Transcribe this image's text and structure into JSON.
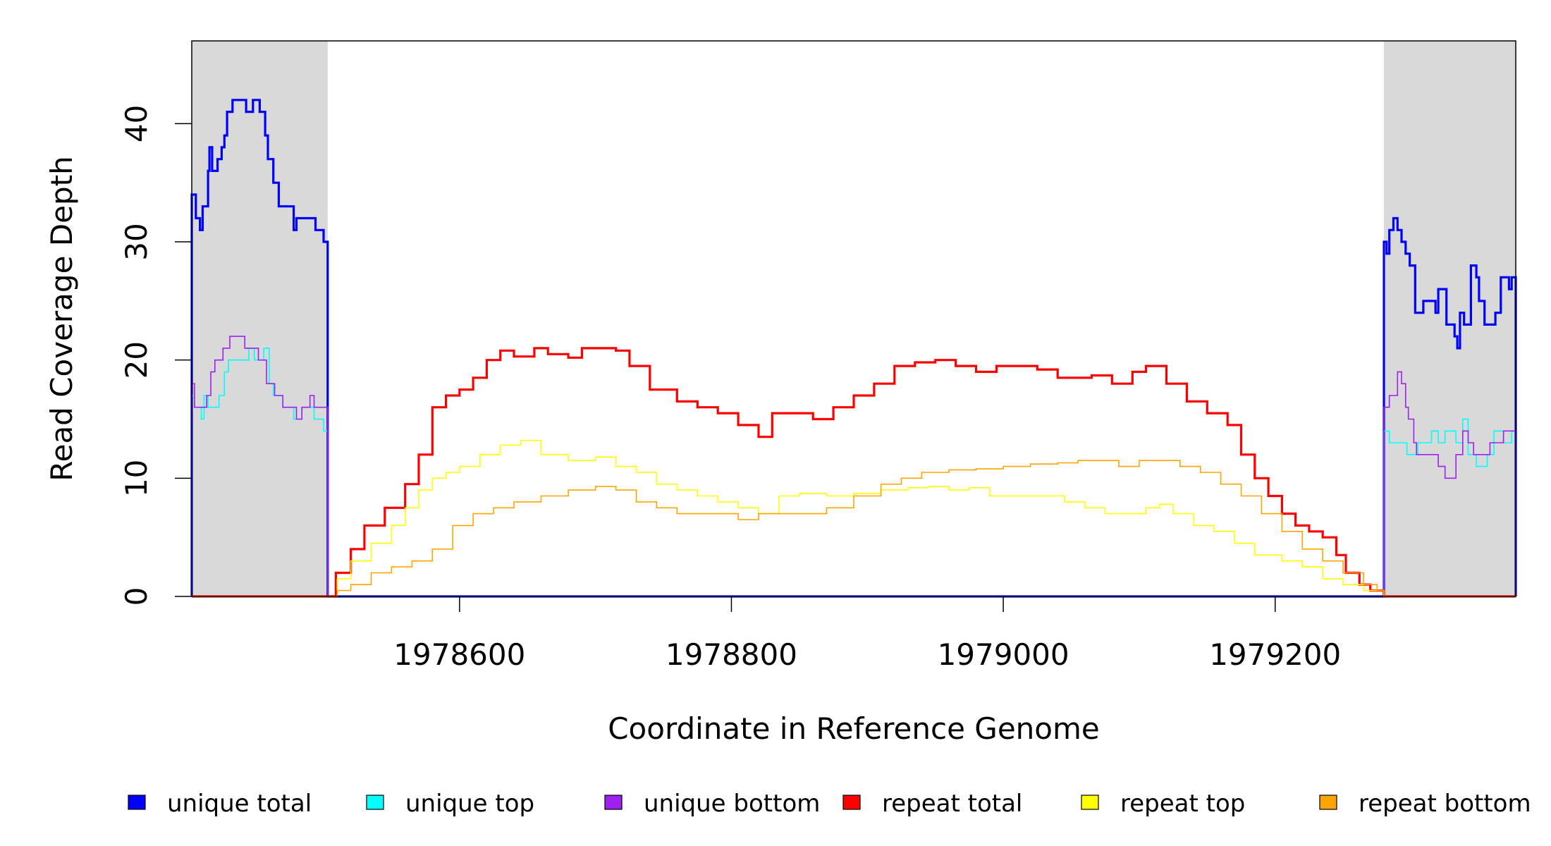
{
  "chart_data": {
    "type": "line",
    "step": true,
    "xlabel": "Coordinate in Reference Genome",
    "ylabel": "Read Coverage Depth",
    "xlim": [
      1978403,
      1979377
    ],
    "ylim": [
      0,
      47
    ],
    "x_ticks": [
      1978600,
      1978800,
      1979000,
      1979200
    ],
    "y_ticks": [
      0,
      10,
      20,
      30,
      40
    ],
    "shaded_regions": [
      [
        1978403,
        1978503
      ],
      [
        1979280,
        1979377
      ]
    ],
    "shade_color": "#d9d9d9",
    "legend_position": "bottom",
    "series": [
      {
        "name": "unique total",
        "color": "#0000ff",
        "width": 3.2,
        "points": [
          [
            1978403,
            34
          ],
          [
            1978406,
            32
          ],
          [
            1978409,
            31
          ],
          [
            1978411,
            33
          ],
          [
            1978415,
            36
          ],
          [
            1978416,
            38
          ],
          [
            1978418,
            36
          ],
          [
            1978422,
            37
          ],
          [
            1978425,
            38
          ],
          [
            1978427,
            39
          ],
          [
            1978429,
            41
          ],
          [
            1978433,
            42
          ],
          [
            1978443,
            41
          ],
          [
            1978448,
            42
          ],
          [
            1978453,
            41
          ],
          [
            1978457,
            39
          ],
          [
            1978459,
            37
          ],
          [
            1978463,
            35
          ],
          [
            1978467,
            33
          ],
          [
            1978478,
            31
          ],
          [
            1978480,
            32
          ],
          [
            1978494,
            31
          ],
          [
            1978500,
            30
          ],
          [
            1978503,
            0
          ],
          [
            1979280,
            30
          ],
          [
            1979282,
            29
          ],
          [
            1979284,
            31
          ],
          [
            1979287,
            32
          ],
          [
            1979290,
            31
          ],
          [
            1979293,
            30
          ],
          [
            1979296,
            29
          ],
          [
            1979299,
            28
          ],
          [
            1979303,
            24
          ],
          [
            1979309,
            25
          ],
          [
            1979318,
            24
          ],
          [
            1979320,
            26
          ],
          [
            1979326,
            23
          ],
          [
            1979332,
            22
          ],
          [
            1979334,
            21
          ],
          [
            1979336,
            24
          ],
          [
            1979339,
            23
          ],
          [
            1979344,
            28
          ],
          [
            1979348,
            27
          ],
          [
            1979350,
            25
          ],
          [
            1979354,
            23
          ],
          [
            1979362,
            24
          ],
          [
            1979366,
            27
          ],
          [
            1979372,
            26
          ],
          [
            1979374,
            27
          ],
          [
            1979377,
            27
          ]
        ]
      },
      {
        "name": "unique top",
        "color": "#00ffff",
        "width": 1.6,
        "points": [
          [
            1978403,
            17
          ],
          [
            1978405,
            16
          ],
          [
            1978410,
            15
          ],
          [
            1978412,
            17
          ],
          [
            1978415,
            16
          ],
          [
            1978423,
            17
          ],
          [
            1978427,
            19
          ],
          [
            1978430,
            20
          ],
          [
            1978445,
            21
          ],
          [
            1978449,
            20
          ],
          [
            1978456,
            21
          ],
          [
            1978460,
            18
          ],
          [
            1978463,
            17
          ],
          [
            1978470,
            16
          ],
          [
            1978478,
            15
          ],
          [
            1978484,
            16
          ],
          [
            1978493,
            15
          ],
          [
            1978500,
            14
          ],
          [
            1978503,
            0
          ],
          [
            1979280,
            14
          ],
          [
            1979284,
            13
          ],
          [
            1979297,
            12
          ],
          [
            1979305,
            13
          ],
          [
            1979315,
            14
          ],
          [
            1979320,
            13
          ],
          [
            1979325,
            14
          ],
          [
            1979333,
            13
          ],
          [
            1979338,
            15
          ],
          [
            1979342,
            12
          ],
          [
            1979348,
            11
          ],
          [
            1979356,
            12
          ],
          [
            1979361,
            14
          ],
          [
            1979368,
            13
          ],
          [
            1979374,
            14
          ],
          [
            1979377,
            14
          ]
        ]
      },
      {
        "name": "unique bottom",
        "color": "#a020f0",
        "width": 1.6,
        "points": [
          [
            1978403,
            18
          ],
          [
            1978405,
            16
          ],
          [
            1978414,
            17
          ],
          [
            1978417,
            19
          ],
          [
            1978420,
            20
          ],
          [
            1978426,
            21
          ],
          [
            1978431,
            22
          ],
          [
            1978442,
            21
          ],
          [
            1978452,
            20
          ],
          [
            1978458,
            18
          ],
          [
            1978464,
            17
          ],
          [
            1978470,
            16
          ],
          [
            1978480,
            15
          ],
          [
            1978484,
            16
          ],
          [
            1978490,
            17
          ],
          [
            1978493,
            16
          ],
          [
            1978500,
            16
          ],
          [
            1978503,
            0
          ],
          [
            1979280,
            16
          ],
          [
            1979284,
            17
          ],
          [
            1979290,
            19
          ],
          [
            1979293,
            18
          ],
          [
            1979296,
            16
          ],
          [
            1979298,
            15
          ],
          [
            1979302,
            13
          ],
          [
            1979304,
            12
          ],
          [
            1979320,
            11
          ],
          [
            1979325,
            10
          ],
          [
            1979333,
            12
          ],
          [
            1979338,
            14
          ],
          [
            1979342,
            13
          ],
          [
            1979346,
            12
          ],
          [
            1979358,
            13
          ],
          [
            1979368,
            14
          ],
          [
            1979374,
            14
          ],
          [
            1979377,
            14
          ]
        ]
      },
      {
        "name": "repeat total",
        "color": "#ff0000",
        "width": 3.2,
        "points": [
          [
            1978503,
            0
          ],
          [
            1978509,
            2
          ],
          [
            1978520,
            4
          ],
          [
            1978530,
            6
          ],
          [
            1978545,
            7.5
          ],
          [
            1978560,
            9.5
          ],
          [
            1978570,
            12
          ],
          [
            1978580,
            16
          ],
          [
            1978590,
            17
          ],
          [
            1978600,
            17.5
          ],
          [
            1978610,
            18.5
          ],
          [
            1978620,
            20
          ],
          [
            1978630,
            20.8
          ],
          [
            1978640,
            20.3
          ],
          [
            1978655,
            21
          ],
          [
            1978665,
            20.5
          ],
          [
            1978680,
            20.2
          ],
          [
            1978690,
            21
          ],
          [
            1978700,
            21
          ],
          [
            1978715,
            20.8
          ],
          [
            1978725,
            19.5
          ],
          [
            1978740,
            17.5
          ],
          [
            1978760,
            16.5
          ],
          [
            1978775,
            16
          ],
          [
            1978790,
            15.5
          ],
          [
            1978805,
            14.5
          ],
          [
            1978820,
            13.5
          ],
          [
            1978830,
            15.5
          ],
          [
            1978845,
            15.5
          ],
          [
            1978860,
            15
          ],
          [
            1978875,
            16
          ],
          [
            1978890,
            17
          ],
          [
            1978905,
            18
          ],
          [
            1978920,
            19.5
          ],
          [
            1978935,
            19.8
          ],
          [
            1978950,
            20
          ],
          [
            1978965,
            19.5
          ],
          [
            1978980,
            19
          ],
          [
            1978995,
            19.5
          ],
          [
            1979010,
            19.5
          ],
          [
            1979025,
            19.2
          ],
          [
            1979040,
            18.5
          ],
          [
            1979055,
            18.5
          ],
          [
            1979065,
            18.7
          ],
          [
            1979080,
            18
          ],
          [
            1979095,
            19
          ],
          [
            1979105,
            19.5
          ],
          [
            1979120,
            18
          ],
          [
            1979135,
            16.5
          ],
          [
            1979150,
            15.5
          ],
          [
            1979165,
            14.5
          ],
          [
            1979175,
            12
          ],
          [
            1979185,
            10
          ],
          [
            1979195,
            8.5
          ],
          [
            1979205,
            7
          ],
          [
            1979215,
            6
          ],
          [
            1979225,
            5.5
          ],
          [
            1979235,
            5
          ],
          [
            1979245,
            3.5
          ],
          [
            1979252,
            2
          ],
          [
            1979262,
            1
          ],
          [
            1979270,
            0.5
          ],
          [
            1979280,
            0
          ]
        ]
      },
      {
        "name": "repeat top",
        "color": "#ffff00",
        "width": 1.6,
        "points": [
          [
            1978503,
            0
          ],
          [
            1978510,
            1.5
          ],
          [
            1978520,
            3
          ],
          [
            1978535,
            4.5
          ],
          [
            1978550,
            6
          ],
          [
            1978560,
            7.5
          ],
          [
            1978570,
            9
          ],
          [
            1978580,
            10
          ],
          [
            1978590,
            10.5
          ],
          [
            1978600,
            11
          ],
          [
            1978615,
            12
          ],
          [
            1978630,
            12.8
          ],
          [
            1978645,
            13.2
          ],
          [
            1978660,
            12
          ],
          [
            1978680,
            11.5
          ],
          [
            1978700,
            11.8
          ],
          [
            1978715,
            11
          ],
          [
            1978730,
            10.5
          ],
          [
            1978745,
            9.5
          ],
          [
            1978760,
            9
          ],
          [
            1978775,
            8.5
          ],
          [
            1978790,
            8
          ],
          [
            1978805,
            7.5
          ],
          [
            1978820,
            7
          ],
          [
            1978835,
            8.5
          ],
          [
            1978850,
            8.7
          ],
          [
            1978870,
            8.5
          ],
          [
            1978890,
            8.7
          ],
          [
            1978910,
            9
          ],
          [
            1978930,
            9.2
          ],
          [
            1978945,
            9.3
          ],
          [
            1978960,
            9
          ],
          [
            1978975,
            9.2
          ],
          [
            1978990,
            8.5
          ],
          [
            1979010,
            8.5
          ],
          [
            1979030,
            8.5
          ],
          [
            1979045,
            8
          ],
          [
            1979060,
            7.5
          ],
          [
            1979075,
            7
          ],
          [
            1979090,
            7
          ],
          [
            1979105,
            7.5
          ],
          [
            1979115,
            7.8
          ],
          [
            1979125,
            7
          ],
          [
            1979140,
            6
          ],
          [
            1979155,
            5.5
          ],
          [
            1979170,
            4.5
          ],
          [
            1979185,
            3.5
          ],
          [
            1979205,
            3
          ],
          [
            1979220,
            2.5
          ],
          [
            1979235,
            1.5
          ],
          [
            1979250,
            1
          ],
          [
            1979265,
            0.5
          ],
          [
            1979280,
            0
          ]
        ]
      },
      {
        "name": "repeat bottom",
        "color": "#ffa500",
        "width": 1.6,
        "points": [
          [
            1978503,
            0
          ],
          [
            1978510,
            0.5
          ],
          [
            1978520,
            1
          ],
          [
            1978535,
            2
          ],
          [
            1978550,
            2.5
          ],
          [
            1978565,
            3
          ],
          [
            1978580,
            4
          ],
          [
            1978595,
            6
          ],
          [
            1978610,
            7
          ],
          [
            1978625,
            7.5
          ],
          [
            1978640,
            8
          ],
          [
            1978660,
            8.5
          ],
          [
            1978680,
            9
          ],
          [
            1978700,
            9.3
          ],
          [
            1978715,
            9
          ],
          [
            1978730,
            8
          ],
          [
            1978745,
            7.5
          ],
          [
            1978760,
            7
          ],
          [
            1978775,
            7
          ],
          [
            1978790,
            7
          ],
          [
            1978805,
            6.5
          ],
          [
            1978820,
            7
          ],
          [
            1978835,
            7
          ],
          [
            1978850,
            7
          ],
          [
            1978870,
            7.5
          ],
          [
            1978890,
            8.5
          ],
          [
            1978910,
            9.5
          ],
          [
            1978925,
            10
          ],
          [
            1978940,
            10.5
          ],
          [
            1978960,
            10.7
          ],
          [
            1978980,
            10.8
          ],
          [
            1979000,
            11
          ],
          [
            1979020,
            11.2
          ],
          [
            1979040,
            11.3
          ],
          [
            1979055,
            11.5
          ],
          [
            1979070,
            11.5
          ],
          [
            1979085,
            11
          ],
          [
            1979100,
            11.5
          ],
          [
            1979115,
            11.5
          ],
          [
            1979130,
            11
          ],
          [
            1979145,
            10.5
          ],
          [
            1979160,
            9.5
          ],
          [
            1979175,
            8.5
          ],
          [
            1979190,
            7
          ],
          [
            1979205,
            5.5
          ],
          [
            1979220,
            4
          ],
          [
            1979235,
            3
          ],
          [
            1979250,
            2
          ],
          [
            1979265,
            1
          ],
          [
            1979275,
            0.5
          ],
          [
            1979280,
            0
          ]
        ]
      }
    ]
  }
}
